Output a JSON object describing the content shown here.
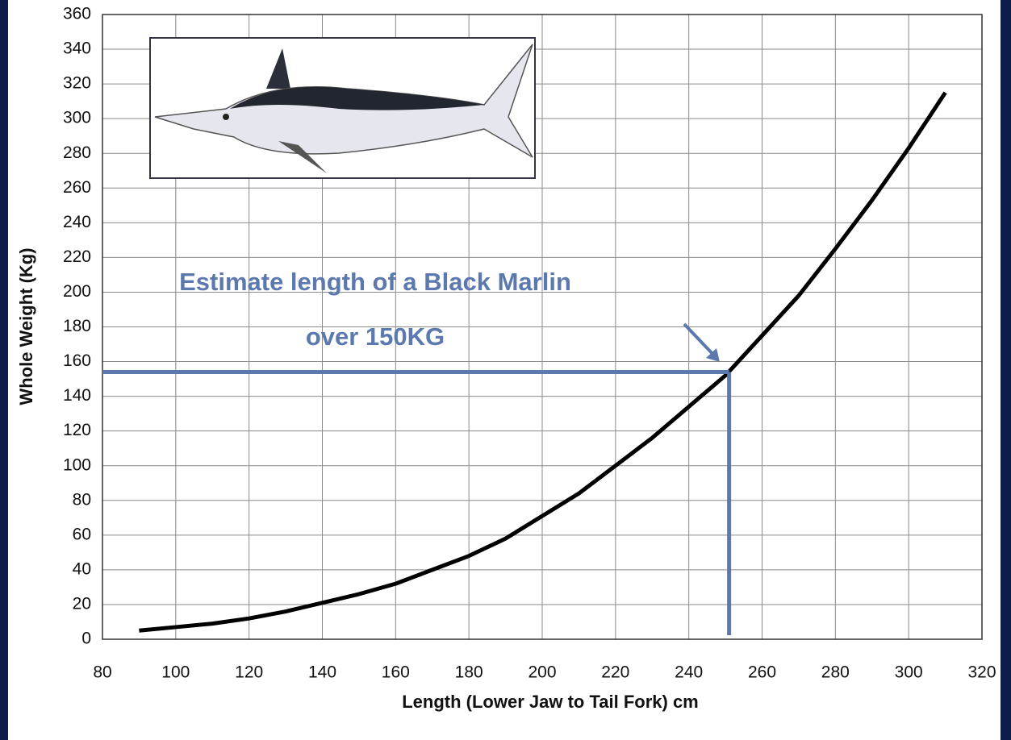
{
  "chart_data": {
    "type": "line",
    "xlabel": "Length (Lower Jaw to Tail Fork) cm",
    "ylabel": "Whole Weight (Kg)",
    "x": [
      90,
      100,
      110,
      120,
      130,
      140,
      150,
      160,
      170,
      180,
      190,
      200,
      210,
      220,
      230,
      240,
      250,
      260,
      270,
      280,
      290,
      300,
      310
    ],
    "values": [
      5,
      7,
      9,
      12,
      16,
      21,
      26,
      32,
      40,
      48,
      58,
      71,
      84,
      100,
      116,
      134,
      152,
      175,
      198,
      225,
      253,
      283,
      315
    ],
    "color": "#000000",
    "xlim": [
      80,
      320
    ],
    "xticks": [
      80,
      100,
      120,
      140,
      160,
      180,
      200,
      220,
      240,
      260,
      280,
      300,
      320
    ],
    "ylim": [
      0,
      360
    ],
    "yticks": [
      0,
      20,
      40,
      60,
      80,
      100,
      120,
      140,
      160,
      180,
      200,
      220,
      240,
      260,
      280,
      300,
      320,
      340,
      360
    ],
    "grid": true,
    "annotations": [
      "Estimate length of a Black Marlin",
      "over 150KG"
    ],
    "guide": {
      "x": 251,
      "y": 154,
      "color": "#5b79ae"
    }
  }
}
